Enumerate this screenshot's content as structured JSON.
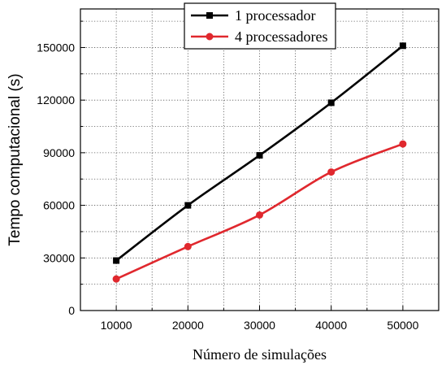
{
  "chart_data": {
    "type": "line",
    "xlabel": "Número de simulações",
    "ylabel": "Tempo computacional (s)",
    "x": [
      10000,
      20000,
      30000,
      40000,
      50000
    ],
    "xticks": [
      "10000",
      "20000",
      "30000",
      "40000",
      "50000"
    ],
    "xlim": [
      5000,
      55000
    ],
    "yticks": [
      "0",
      "30000",
      "60000",
      "90000",
      "120000",
      "150000"
    ],
    "ylim": [
      0,
      172000
    ],
    "grid": true,
    "legend_position": "top-center",
    "series": [
      {
        "name": "1 processador",
        "color": "#000000",
        "marker": "square",
        "values": [
          28500,
          60000,
          88500,
          118500,
          151000
        ]
      },
      {
        "name": "4 processadores",
        "color": "#e0282e",
        "marker": "circle",
        "values": [
          18000,
          36500,
          54500,
          79000,
          95000
        ]
      }
    ]
  }
}
